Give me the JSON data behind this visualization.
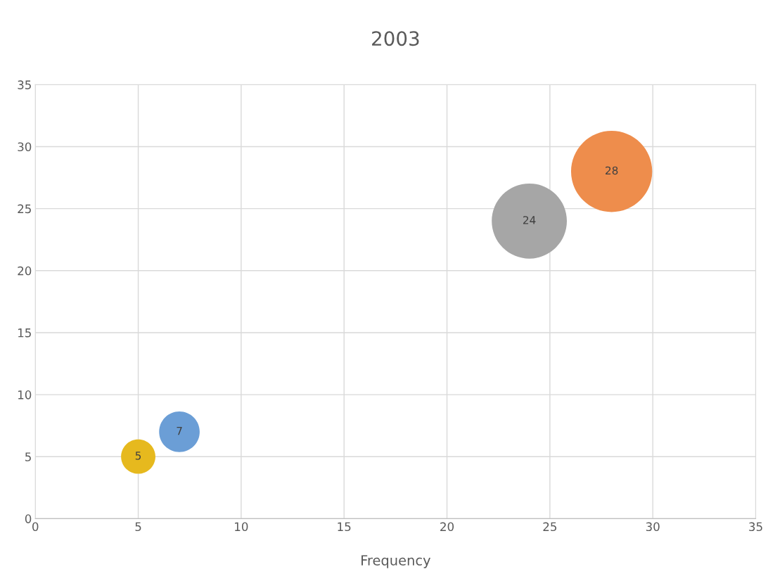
{
  "chart_data": {
    "type": "bubble",
    "title": "2003",
    "xlabel": "Frequency",
    "x": [
      5,
      7,
      24,
      28
    ],
    "values": [
      5,
      7,
      24,
      28
    ],
    "sizes": [
      0.179,
      0.25,
      0.857,
      1
    ],
    "colors": [
      "#e6b91e",
      "#6b9ed6",
      "#a6a6a6",
      "#ee8d4c"
    ],
    "data_labels": true,
    "xlim": [
      0,
      35
    ],
    "xticks": [
      0,
      5,
      10,
      15,
      20,
      25,
      30,
      35
    ],
    "ylim": [
      0,
      35
    ],
    "yticks": [
      0,
      5,
      10,
      15,
      20,
      25,
      30,
      35
    ],
    "grid": true
  }
}
